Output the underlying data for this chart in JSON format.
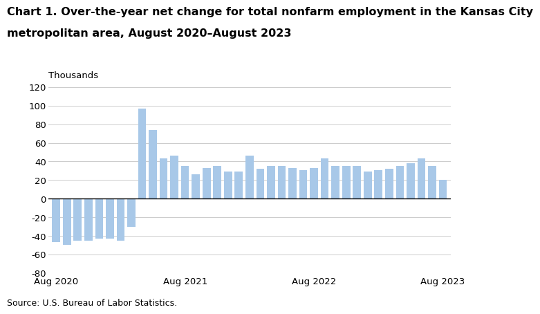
{
  "title_line1": "Chart 1. Over-the-year net change for total nonfarm employment in the Kansas City",
  "title_line2": "metropolitan area, August 2020–August 2023",
  "ylabel": "Thousands",
  "source": "Source: U.S. Bureau of Labor Statistics.",
  "bar_color": "#a8c8e8",
  "ylim": [
    -80,
    120
  ],
  "yticks": [
    -80,
    -60,
    -40,
    -20,
    0,
    20,
    40,
    60,
    80,
    100,
    120
  ],
  "values": [
    -47,
    -50,
    -45,
    -45,
    -43,
    -43,
    -45,
    -30,
    97,
    74,
    43,
    46,
    35,
    26,
    33,
    35,
    29,
    29,
    46,
    32,
    35,
    35,
    33,
    31,
    33,
    43,
    35,
    35,
    35,
    29,
    31,
    32,
    35,
    38,
    43,
    35,
    20
  ],
  "xtick_positions": [
    0,
    12,
    24,
    36
  ],
  "xtick_labels": [
    "Aug 2020",
    "Aug 2021",
    "Aug 2022",
    "Aug 2023"
  ],
  "background_color": "#ffffff",
  "grid_color": "#cccccc",
  "title_fontsize": 11.5,
  "axis_fontsize": 9.5,
  "source_fontsize": 9
}
